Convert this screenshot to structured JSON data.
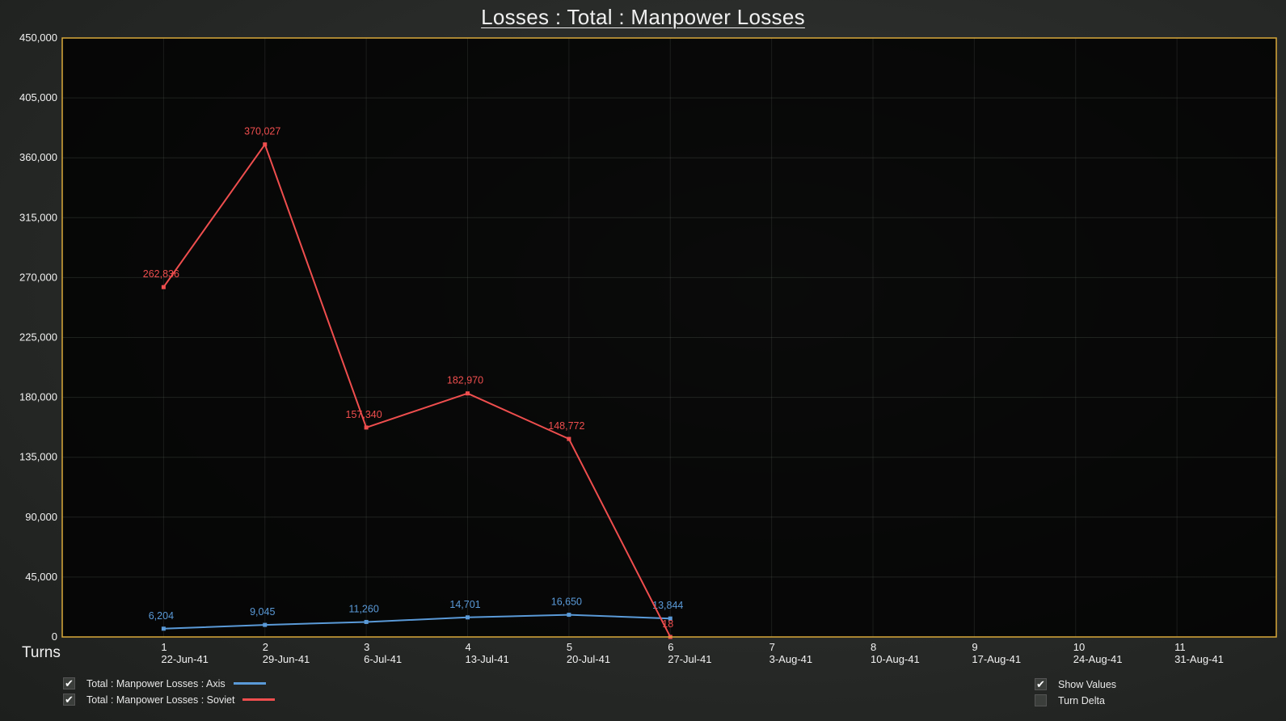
{
  "title": "Losses : Total : Manpower Losses",
  "x_axis_label": "Turns",
  "colors": {
    "axis": "#5a9ad8",
    "soviet": "#ef4e4e",
    "frame": "#d9a93a"
  },
  "legend": [
    {
      "label": "Total : Manpower Losses : Axis",
      "checked": true,
      "check_glyph": "✔",
      "color": "#5a9ad8"
    },
    {
      "label": "Total : Manpower Losses : Soviet",
      "checked": true,
      "check_glyph": "✔",
      "color": "#ef4e4e"
    }
  ],
  "options": [
    {
      "label": "Show Values",
      "checked": true,
      "check_glyph": "✔"
    },
    {
      "label": "Turn Delta",
      "checked": false,
      "check_glyph": ""
    }
  ],
  "chart_data": {
    "type": "line",
    "title": "Losses : Total : Manpower Losses",
    "xlabel": "Turns",
    "ylabel": "",
    "ylim": [
      0,
      450000
    ],
    "xlim": [
      0,
      11.98
    ],
    "y_ticks": [
      0,
      45000,
      90000,
      135000,
      180000,
      225000,
      270000,
      315000,
      360000,
      405000,
      450000
    ],
    "y_tick_labels": [
      "0",
      "45,000",
      "90,000",
      "135,000",
      "180,000",
      "225,000",
      "270,000",
      "315,000",
      "360,000",
      "405,000",
      "450,000"
    ],
    "x_ticks": [
      1,
      2,
      3,
      4,
      5,
      6,
      7,
      8,
      9,
      10,
      11
    ],
    "x_dates": [
      "22-Jun-41",
      "29-Jun-41",
      "6-Jul-41",
      "13-Jul-41",
      "20-Jul-41",
      "27-Jul-41",
      "3-Aug-41",
      "10-Aug-41",
      "17-Aug-41",
      "24-Aug-41",
      "31-Aug-41"
    ],
    "grid": true,
    "legend_position": "bottom-left",
    "series": [
      {
        "name": "Total : Manpower Losses : Axis",
        "color": "#5a9ad8",
        "x": [
          1,
          2,
          3,
          4,
          5,
          6
        ],
        "values": [
          6204,
          9045,
          11260,
          14701,
          16650,
          13844
        ],
        "labels": [
          "6,204",
          "9,045",
          "11,260",
          "14,701",
          "16,650",
          "13,844"
        ]
      },
      {
        "name": "Total : Manpower Losses : Soviet",
        "color": "#ef4e4e",
        "x": [
          1,
          2,
          3,
          4,
          5,
          6
        ],
        "values": [
          262836,
          370027,
          157340,
          182970,
          148772,
          18
        ],
        "labels": [
          "262,836",
          "370,027",
          "157,340",
          "182,970",
          "148,772",
          "18"
        ]
      }
    ]
  }
}
